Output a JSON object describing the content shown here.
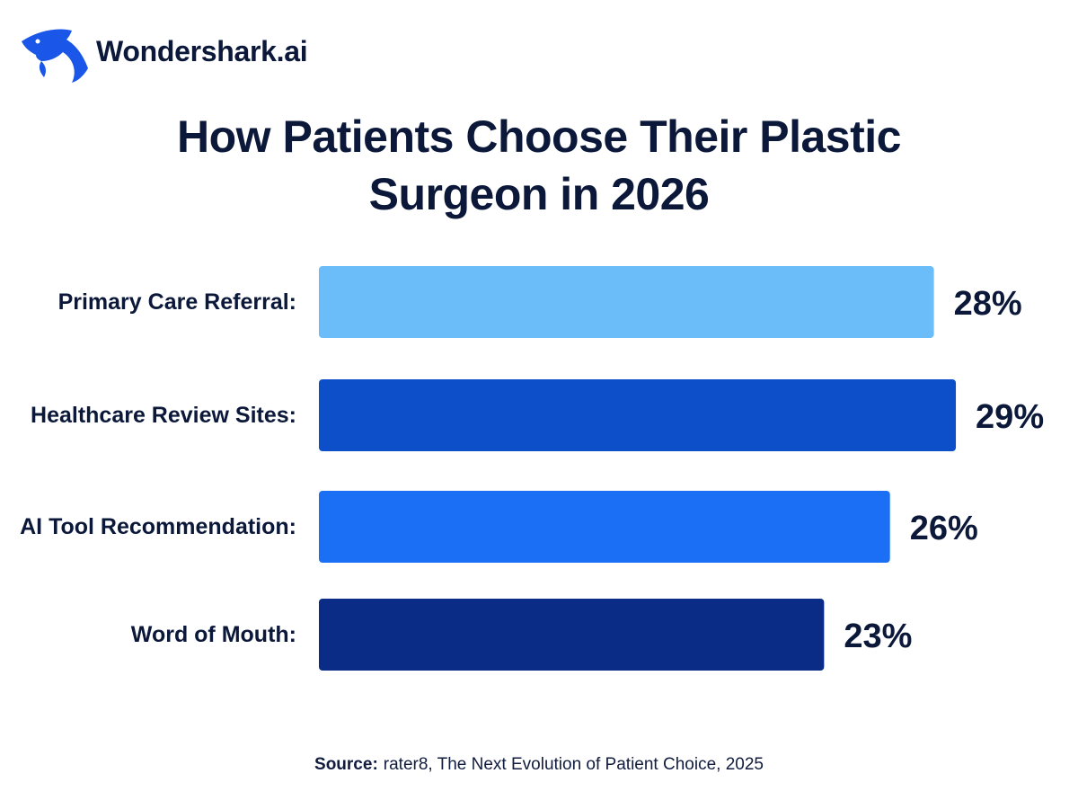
{
  "brand": {
    "name": "Wondershark.ai",
    "logo_icon": "shark-icon",
    "logo_color": "#1a56e8"
  },
  "chart_data": {
    "type": "bar",
    "orientation": "horizontal",
    "title": "How Patients Choose Their Plastic Surgeon in 2026",
    "categories": [
      "Primary Care Referral:",
      "Healthcare Review Sites:",
      "AI Tool Recommendation:",
      "Word of Mouth:"
    ],
    "values": [
      28,
      29,
      26,
      23
    ],
    "value_labels": [
      "28%",
      "29%",
      "26%",
      "23%"
    ],
    "bar_colors": [
      "#6bbdfa",
      "#0c4fc8",
      "#1a6ff5",
      "#0a2c86"
    ],
    "unit": "%",
    "grid": false,
    "legend": "none"
  },
  "source": {
    "label": "Source:",
    "text": "rater8, The Next Evolution of Patient Choice, 2025"
  }
}
